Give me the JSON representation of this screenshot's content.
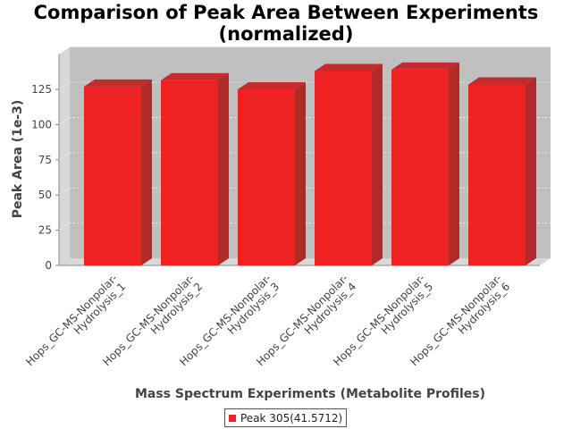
{
  "chart_data": {
    "type": "bar",
    "title_lines": [
      "Comparison of Peak Area Between Experiments",
      "(normalized)"
    ],
    "xlabel": "Mass Spectrum Experiments (Metabolite Profiles)",
    "ylabel": "Peak Area (1e-3)",
    "ylim": [
      0,
      150
    ],
    "yticks": [
      0,
      25,
      50,
      75,
      100,
      125
    ],
    "categories": [
      [
        "Hops_GC-MS-Nonpolar-",
        "Hydrolysis_1"
      ],
      [
        "Hops_GC-MS-Nonpolar-",
        "Hydrolysis_2"
      ],
      [
        "Hops_GC-MS-Nonpolar-",
        "Hydrolysis_3"
      ],
      [
        "Hops_GC-MS-Nonpolar-",
        "Hydrolysis_4"
      ],
      [
        "Hops_GC-MS-Nonpolar-",
        "Hydrolysis_5"
      ],
      [
        "Hops_GC-MS-Nonpolar-",
        "Hydrolysis_6"
      ]
    ],
    "series": [
      {
        "name": "Peak 305(41.5712)",
        "color": "#ee2222",
        "values": [
          127,
          131.5,
          125,
          138,
          139,
          128.5
        ]
      }
    ],
    "grid": true,
    "legend_position": "bottom"
  }
}
